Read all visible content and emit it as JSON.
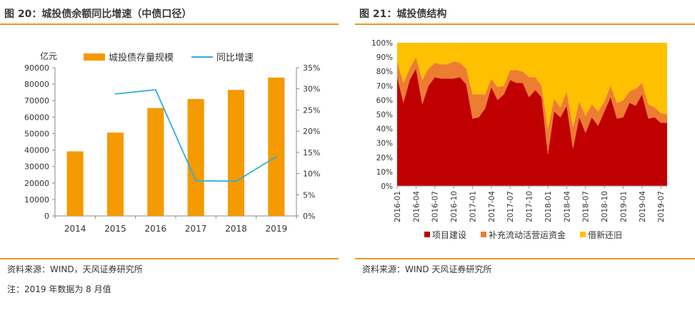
{
  "left_panel": {
    "title": "图 20：城投债余额同比增速（中债口径）",
    "source": "资料来源：WIND，天风证券研究所",
    "note": "注：2019 年数据为 8 月值"
  },
  "right_panel": {
    "title": "图 21：城投债结构",
    "source": "资料来源：WIND 天风证券研究所"
  },
  "colors": {
    "accent_line": "#e8961e",
    "bar": "#f59a00",
    "growth_line": "#2eaee0",
    "project": "#c00000",
    "working_capital": "#ed7d31",
    "refinance": "#ffc000"
  },
  "chart_data": [
    {
      "type": "bar",
      "y_unit_label": "亿元",
      "categories": [
        "2014",
        "2015",
        "2016",
        "2017",
        "2018",
        "2019"
      ],
      "series": [
        {
          "name": "城投债存量规模",
          "type": "bar",
          "axis": "left",
          "values": [
            39200,
            50600,
            65500,
            71000,
            76500,
            84000
          ]
        },
        {
          "name": "同比增速",
          "type": "line",
          "axis": "right",
          "values": [
            null,
            28.8,
            29.8,
            8.3,
            8.2,
            14.0
          ]
        }
      ],
      "ylim_left": [
        0,
        90000
      ],
      "yticks_left": [
        "0",
        "10000",
        "20000",
        "30000",
        "40000",
        "50000",
        "60000",
        "70000",
        "80000",
        "90000"
      ],
      "ylim_right": [
        0,
        35
      ],
      "yticks_right": [
        "0%",
        "5%",
        "10%",
        "15%",
        "20%",
        "25%",
        "30%",
        "35%"
      ]
    },
    {
      "type": "area",
      "stacked": true,
      "x_tick_labels": [
        "2016-01",
        "2016-04",
        "2016-07",
        "2016-10",
        "2017-01",
        "2017-04",
        "2017-07",
        "2017-10",
        "2018-01",
        "2018-04",
        "2018-07",
        "2018-10",
        "2019-01",
        "2019-04",
        "2019-07"
      ],
      "n_points": 44,
      "ylim": [
        0,
        100
      ],
      "yticks": [
        "0%",
        "10%",
        "20%",
        "30%",
        "40%",
        "50%",
        "60%",
        "70%",
        "80%",
        "90%",
        "100%"
      ],
      "series": [
        {
          "name": "项目建设",
          "values": [
            76,
            58,
            74,
            82,
            57,
            70,
            76,
            75,
            75,
            75,
            76,
            71,
            47,
            48,
            54,
            69,
            60,
            64,
            74,
            72,
            72,
            62,
            67,
            62,
            22,
            52,
            48,
            56,
            26,
            48,
            37,
            48,
            42,
            52,
            62,
            47,
            48,
            58,
            56,
            64,
            47,
            48,
            44,
            44
          ]
        },
        {
          "name": "补充流动活营运资金",
          "values": [
            11,
            14,
            8,
            8,
            17,
            12,
            10,
            10,
            10,
            12,
            10,
            11,
            17,
            16,
            10,
            6,
            9,
            6,
            7,
            9,
            8,
            14,
            9,
            8,
            18,
            9,
            7,
            10,
            15,
            11,
            12,
            9,
            10,
            7,
            8,
            11,
            12,
            8,
            12,
            8,
            10,
            7,
            7,
            6
          ]
        },
        {
          "name": "借新还旧",
          "values": [
            13,
            28,
            18,
            10,
            26,
            18,
            14,
            15,
            15,
            13,
            14,
            18,
            36,
            36,
            36,
            25,
            31,
            30,
            19,
            19,
            20,
            24,
            24,
            30,
            60,
            39,
            45,
            34,
            59,
            41,
            51,
            43,
            48,
            41,
            30,
            42,
            40,
            34,
            32,
            28,
            43,
            45,
            49,
            50
          ]
        }
      ]
    }
  ]
}
